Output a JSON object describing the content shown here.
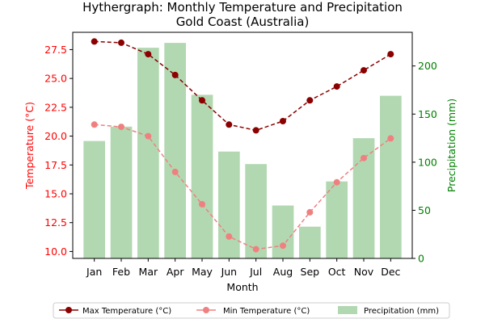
{
  "chart_data": {
    "type": "bar+line",
    "title": "Hythergraph: Monthly Temperature and Precipitation",
    "subtitle": "Gold Coast (Australia)",
    "xlabel": "Month",
    "ylabel_left": "Temperature (°C)",
    "ylabel_right": "Precipitation (mm)",
    "categories": [
      "Jan",
      "Feb",
      "Mar",
      "Apr",
      "May",
      "Jun",
      "Jul",
      "Aug",
      "Sep",
      "Oct",
      "Nov",
      "Dec"
    ],
    "ylim_left": [
      9.4,
      29.0
    ],
    "ylim_right": [
      0,
      235
    ],
    "yticks_left": [
      "10.0",
      "12.5",
      "15.0",
      "17.5",
      "20.0",
      "22.5",
      "25.0",
      "27.5"
    ],
    "yticks_right": [
      "0",
      "50",
      "100",
      "150",
      "200"
    ],
    "series": [
      {
        "name": "Max Temperature (°C)",
        "kind": "line",
        "axis": "left",
        "color": "#8b0000",
        "style": "dashed",
        "values": [
          28.2,
          28.1,
          27.1,
          25.3,
          23.1,
          21.0,
          20.5,
          21.3,
          23.1,
          24.3,
          25.7,
          27.1
        ]
      },
      {
        "name": "Min Temperature (°C)",
        "kind": "line",
        "axis": "left",
        "color": "#f08080",
        "style": "dashed",
        "values": [
          21.0,
          20.8,
          20.0,
          16.9,
          14.1,
          11.3,
          10.2,
          10.5,
          13.4,
          16.0,
          18.1,
          19.8
        ]
      },
      {
        "name": "Precipitation (mm)",
        "kind": "bar",
        "axis": "right",
        "color": "#b2d8b2",
        "values": [
          122,
          137,
          219,
          224,
          170,
          111,
          98,
          55,
          33,
          80,
          125,
          169
        ]
      }
    ],
    "legend_position": "bottom",
    "grid": false
  }
}
